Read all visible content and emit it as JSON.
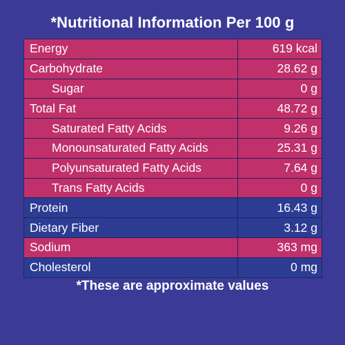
{
  "title": "*Nutritional Information Per 100 g",
  "rows": [
    {
      "name": "Energy",
      "value": "619 kcal",
      "style": "pink",
      "indent": false
    },
    {
      "name": "Carbohydrate",
      "value": "28.62 g",
      "style": "pink",
      "indent": false
    },
    {
      "name": "Sugar",
      "value": "0 g",
      "style": "pink",
      "indent": true
    },
    {
      "name": "Total Fat",
      "value": "48.72 g",
      "style": "pink",
      "indent": false
    },
    {
      "name": "Saturated Fatty Acids",
      "value": "9.26 g",
      "style": "pink",
      "indent": true
    },
    {
      "name": "Monounsaturated Fatty Acids",
      "value": "25.31 g",
      "style": "pink",
      "indent": true
    },
    {
      "name": "Polyunsaturated Fatty Acids",
      "value": "7.64 g",
      "style": "pink",
      "indent": true
    },
    {
      "name": "Trans Fatty Acids",
      "value": "0 g",
      "style": "pink",
      "indent": true
    },
    {
      "name": "Protein",
      "value": "16.43 g",
      "style": "blue",
      "indent": false
    },
    {
      "name": "Dietary Fiber",
      "value": "3.12 g",
      "style": "blue",
      "indent": false
    },
    {
      "name": "Sodium",
      "value": "363 mg",
      "style": "pink",
      "indent": false
    },
    {
      "name": "Cholesterol",
      "value": "0 mg",
      "style": "blue",
      "indent": false
    }
  ],
  "footnote": "*These are approximate values",
  "colors": {
    "background": "#3b3b97",
    "pink_row": "#c0306b",
    "blue_row": "#2d3c93"
  }
}
